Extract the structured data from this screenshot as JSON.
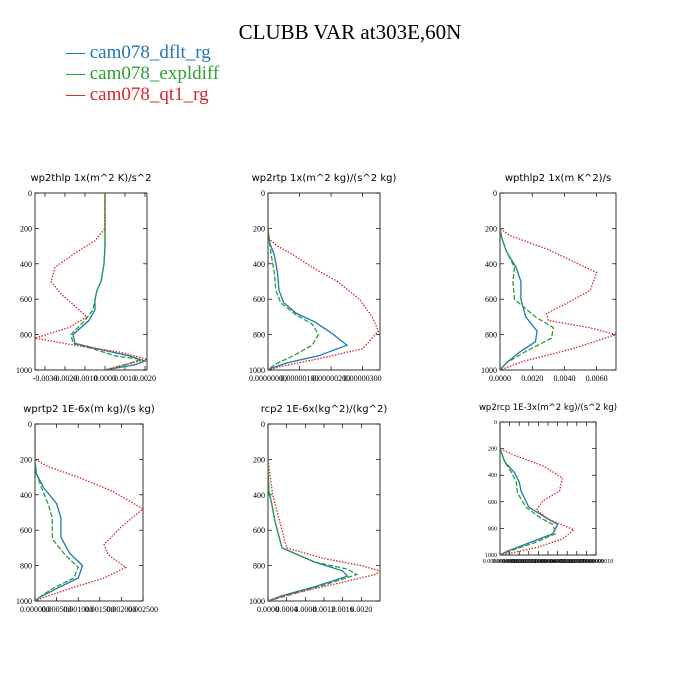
{
  "title": "CLUBB VAR at303E,60N",
  "legend": [
    {
      "name": "cam078_dflt_rg",
      "color": "#1f77b4",
      "dash": "solid"
    },
    {
      "name": "cam078_expldiff",
      "color": "#2ca02c",
      "dash": "dashed"
    },
    {
      "name": "cam078_qt1_rg",
      "color": "#d62728",
      "dash": "dotted"
    }
  ],
  "chart_data": [
    {
      "type": "line",
      "title": "wp2thlp  1x(m^2 K)/s^2",
      "xlim": [
        -0.0035,
        0.0021
      ],
      "ylim": [
        1000,
        0
      ],
      "xticks": [
        -0.003,
        -0.002,
        -0.001,
        0,
        0.001,
        0.002
      ],
      "xticklabels": [
        "-0.0030",
        "-0.0020",
        "-0.0010",
        "0.0000",
        "0.0010",
        "0.0020"
      ],
      "yticks": [
        0,
        200,
        400,
        600,
        800,
        1000
      ],
      "yticklabels": [
        "0",
        "200",
        "400",
        "600",
        "800",
        "1000"
      ],
      "series": [
        {
          "name": "cam078_dflt_rg",
          "x": [
            0,
            0,
            0,
            -5e-05,
            -0.0002,
            -0.0004,
            -0.0005,
            -0.0005,
            -0.0008,
            -0.0016,
            -0.0015,
            -0.0004,
            0.0012,
            0.002,
            0.0015,
            0.0005,
            0
          ],
          "y": [
            0,
            200,
            300,
            400,
            500,
            550,
            600,
            660,
            720,
            800,
            850,
            880,
            920,
            950,
            970,
            990,
            1000
          ]
        },
        {
          "name": "cam078_expldiff",
          "x": [
            0,
            0,
            0,
            -5e-05,
            -0.0002,
            -0.0004,
            -0.0005,
            -0.0006,
            -0.001,
            -0.0017,
            -0.0016,
            -0.0006,
            0.0005,
            0.0018,
            0.0013,
            0.0004,
            0
          ],
          "y": [
            0,
            200,
            300,
            400,
            500,
            550,
            600,
            660,
            720,
            800,
            850,
            880,
            920,
            940,
            960,
            990,
            1000
          ]
        },
        {
          "name": "cam078_qt1_rg",
          "x": [
            0,
            0,
            -0.0005,
            -0.0015,
            -0.0025,
            -0.0027,
            -0.0022,
            -0.0015,
            -0.0009,
            -0.0018,
            -0.0035,
            -0.0015,
            0.0008,
            0.0021,
            0.0006,
            0
          ],
          "y": [
            0,
            200,
            270,
            340,
            420,
            500,
            570,
            640,
            700,
            760,
            820,
            860,
            900,
            940,
            980,
            1000
          ]
        }
      ]
    },
    {
      "type": "line",
      "title": "wp2rtp  1x(m^2 kg)/(s^2 kg)",
      "xlim": [
        0,
        3.55e-06
      ],
      "ylim": [
        1000,
        0
      ],
      "xticks": [
        0,
        1e-06,
        2e-06,
        3e-06
      ],
      "xticklabels": [
        "0.00000000",
        "0.00000100",
        "0.00000200",
        "0.00000300"
      ],
      "yticks": [
        0,
        200,
        400,
        600,
        800,
        1000
      ],
      "yticklabels": [
        "0",
        "200",
        "400",
        "600",
        "800",
        "1000"
      ],
      "series": [
        {
          "name": "cam078_dflt_rg",
          "x": [
            0,
            0,
            5e-08,
            2e-07,
            3e-07,
            3.5e-07,
            5e-07,
            9e-07,
            1.5e-06,
            2e-06,
            2.5e-06,
            1.6e-06,
            6e-07,
            1e-07,
            0
          ],
          "y": [
            0,
            200,
            280,
            350,
            450,
            550,
            620,
            680,
            730,
            790,
            860,
            920,
            960,
            990,
            1000
          ]
        },
        {
          "name": "cam078_expldiff",
          "x": [
            0,
            0,
            5e-08,
            1e-07,
            2e-07,
            2.5e-07,
            4e-07,
            9e-07,
            1.4e-06,
            1.6e-06,
            1.4e-06,
            8e-07,
            2e-07,
            0
          ],
          "y": [
            0,
            200,
            280,
            350,
            450,
            550,
            620,
            690,
            740,
            800,
            860,
            920,
            970,
            1000
          ]
        },
        {
          "name": "cam078_qt1_rg",
          "x": [
            0,
            0,
            3e-08,
            3e-07,
            8e-07,
            1.4e-06,
            2.2e-06,
            2.9e-06,
            3.3e-06,
            3.5e-06,
            3e-06,
            1.5e-06,
            4e-07,
            0
          ],
          "y": [
            0,
            200,
            260,
            300,
            350,
            420,
            500,
            600,
            700,
            780,
            880,
            940,
            980,
            1000
          ]
        }
      ]
    },
    {
      "type": "line",
      "title": "wpthlp2  1x(m K^2)/s",
      "xlim": [
        0,
        0.0072
      ],
      "ylim": [
        1000,
        0
      ],
      "xticks": [
        0,
        0.002,
        0.004,
        0.006
      ],
      "xticklabels": [
        "0.0000",
        "0.0020",
        "0.0040",
        "0.0060"
      ],
      "yticks": [
        0,
        200,
        400,
        600,
        800,
        1000
      ],
      "yticklabels": [
        "0",
        "200",
        "400",
        "600",
        "800",
        "1000"
      ],
      "series": [
        {
          "name": "cam078_dflt_rg",
          "x": [
            0,
            0,
            0.0001,
            0.0004,
            0.001,
            0.0013,
            0.0013,
            0.0016,
            0.0023,
            0.0022,
            0.0012,
            0.0004,
            0
          ],
          "y": [
            0,
            200,
            250,
            330,
            420,
            500,
            600,
            700,
            780,
            840,
            900,
            960,
            1000
          ]
        },
        {
          "name": "cam078_expldiff",
          "x": [
            0,
            0,
            0.0001,
            0.0004,
            0.0009,
            0.0008,
            0.0009,
            0.0022,
            0.0033,
            0.0032,
            0.0015,
            0.0004,
            0
          ],
          "y": [
            0,
            200,
            250,
            330,
            420,
            500,
            600,
            700,
            760,
            820,
            900,
            960,
            1000
          ]
        },
        {
          "name": "cam078_qt1_rg",
          "x": [
            0,
            0,
            0.0006,
            0.003,
            0.006,
            0.0056,
            0.0042,
            0.0029,
            0.003,
            0.0055,
            0.0072,
            0.0045,
            0.0015,
            0
          ],
          "y": [
            0,
            200,
            240,
            320,
            450,
            550,
            620,
            680,
            720,
            760,
            800,
            880,
            950,
            1000
          ]
        }
      ]
    },
    {
      "type": "line",
      "title": "wprtp2  1E-6x(m kg)/(s kg)",
      "xlim": [
        0,
        0.0025
      ],
      "ylim": [
        1000,
        0
      ],
      "xticks": [
        0,
        0.0005,
        0.001,
        0.0015,
        0.002,
        0.0025
      ],
      "xticklabels": [
        "0.000000",
        "0.000500",
        "0.001000",
        "0.001500",
        "0.002000",
        "0.002500"
      ],
      "yticks": [
        0,
        200,
        400,
        600,
        800,
        1000
      ],
      "yticklabels": [
        "0",
        "200",
        "400",
        "600",
        "800",
        "1000"
      ],
      "series": [
        {
          "name": "cam078_dflt_rg",
          "x": [
            0,
            0,
            3e-05,
            0.0002,
            0.0005,
            0.0006,
            0.0006,
            0.0008,
            0.0011,
            0.001,
            0.0005,
            0.0001,
            0
          ],
          "y": [
            0,
            200,
            280,
            360,
            450,
            530,
            640,
            730,
            800,
            870,
            930,
            980,
            1000
          ]
        },
        {
          "name": "cam078_expldiff",
          "x": [
            0,
            0,
            3e-05,
            0.00015,
            0.0003,
            0.0004,
            0.0004,
            0.0007,
            0.001,
            0.0009,
            0.0004,
            0.0001,
            0
          ],
          "y": [
            0,
            200,
            280,
            360,
            450,
            530,
            650,
            740,
            810,
            870,
            930,
            980,
            1000
          ]
        },
        {
          "name": "cam078_qt1_rg",
          "x": [
            0,
            0,
            0.0003,
            0.001,
            0.0018,
            0.0025,
            0.002,
            0.0016,
            0.0017,
            0.0021,
            0.0016,
            0.0008,
            0.0002,
            0
          ],
          "y": [
            0,
            200,
            240,
            300,
            380,
            480,
            580,
            680,
            740,
            810,
            870,
            930,
            980,
            1000
          ]
        }
      ]
    },
    {
      "type": "line",
      "title": "rcp2  1E-6x(kg^2)/(kg^2)",
      "xlim": [
        0,
        0.0024
      ],
      "ylim": [
        1000,
        0
      ],
      "xticks": [
        0,
        0.0004,
        0.0008,
        0.0012,
        0.0016,
        0.002
      ],
      "xticklabels": [
        "0.0000",
        "0.0004",
        "0.0008",
        "0.0012",
        "0.0016",
        "0.0020"
      ],
      "yticks": [
        0,
        200,
        400,
        600,
        800,
        1000
      ],
      "yticklabels": [
        "0",
        "200",
        "400",
        "600",
        "800",
        "1000"
      ],
      "series": [
        {
          "name": "cam078_dflt_rg",
          "x": [
            0,
            0,
            2e-05,
            8e-05,
            0.00015,
            0.0003,
            0.001,
            0.0016,
            0.0017,
            0.001,
            0.0003,
            0
          ],
          "y": [
            0,
            250,
            380,
            450,
            550,
            700,
            780,
            830,
            860,
            920,
            970,
            1000
          ]
        },
        {
          "name": "cam078_expldiff",
          "x": [
            0,
            0,
            2e-05,
            8e-05,
            0.00015,
            0.0003,
            0.001,
            0.0017,
            0.0019,
            0.0012,
            0.0004,
            0
          ],
          "y": [
            0,
            250,
            380,
            450,
            550,
            700,
            780,
            820,
            850,
            910,
            970,
            1000
          ]
        },
        {
          "name": "cam078_qt1_rg",
          "x": [
            0,
            0,
            5e-05,
            0.0001,
            0.0002,
            0.0004,
            0.0012,
            0.002,
            0.0024,
            0.0023,
            0.0015,
            0.0005,
            0
          ],
          "y": [
            0,
            200,
            300,
            400,
            500,
            700,
            760,
            800,
            830,
            850,
            900,
            960,
            1000
          ]
        }
      ]
    },
    {
      "type": "line",
      "title": "wp2rcp  1E-3x(m^2 kg)/(s^2 kg)",
      "xlim": [
        0,
        1
      ],
      "ylim": [
        1000,
        0
      ],
      "xticks": [
        0,
        0.1,
        0.2,
        0.3,
        0.4,
        0.5,
        0.6,
        0.7,
        0.8,
        0.9,
        1.0
      ],
      "xticklabels": [
        "0.0000000000",
        "0.0000000001",
        "0.0000000002",
        "0.0000000003",
        "0.0000000004",
        "0.0000000005",
        "0.0000000006",
        "0.0000000007",
        "0.0000000008",
        "0.0000000009",
        "0.0000000010"
      ],
      "yticks": [
        0,
        200,
        400,
        600,
        800,
        1000
      ],
      "yticklabels": [
        "0",
        "200",
        "400",
        "600",
        "800",
        "1000"
      ],
      "series": [
        {
          "name": "cam078_dflt_rg",
          "x": [
            0,
            0,
            0.05,
            0.15,
            0.2,
            0.22,
            0.3,
            0.48,
            0.6,
            0.55,
            0.3,
            0.08,
            0
          ],
          "y": [
            0,
            200,
            300,
            380,
            450,
            520,
            640,
            720,
            770,
            840,
            910,
            970,
            1000
          ]
        },
        {
          "name": "cam078_expldiff",
          "x": [
            0,
            0,
            0.05,
            0.12,
            0.17,
            0.18,
            0.27,
            0.42,
            0.55,
            0.58,
            0.35,
            0.1,
            0
          ],
          "y": [
            0,
            200,
            300,
            380,
            450,
            530,
            640,
            720,
            770,
            840,
            910,
            970,
            1000
          ]
        },
        {
          "name": "cam078_qt1_rg",
          "x": [
            0,
            0,
            0.15,
            0.45,
            0.65,
            0.62,
            0.45,
            0.38,
            0.5,
            0.77,
            0.65,
            0.4,
            0.15,
            0
          ],
          "y": [
            0,
            200,
            250,
            330,
            420,
            520,
            590,
            660,
            730,
            810,
            880,
            940,
            980,
            1000
          ]
        }
      ]
    }
  ]
}
